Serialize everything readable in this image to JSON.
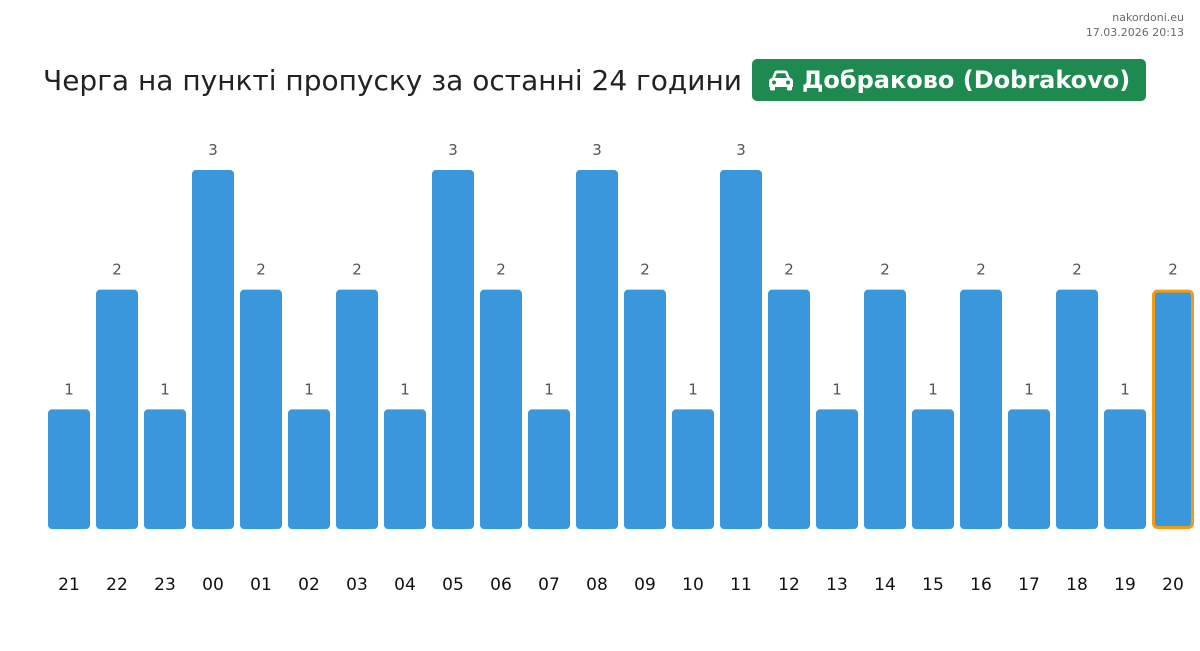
{
  "source": {
    "site": "nakordoni.eu",
    "timestamp": "17.03.2026 20:13"
  },
  "header": {
    "title": "Черга на пункті пропуску за останні 24 години",
    "badge_label": "Добраково (Dobrakovo)",
    "badge_icon": "car-icon",
    "badge_color": "#1e8a4f"
  },
  "colors": {
    "bar": "#3a97db",
    "highlight_border": "#f39c12",
    "value_label": "#555555",
    "tick_label": "#111111"
  },
  "chart_data": {
    "type": "bar",
    "title": "Черга на пункті пропуску за останні 24 години",
    "xlabel": "",
    "ylabel": "",
    "categories": [
      "21",
      "22",
      "23",
      "00",
      "01",
      "02",
      "03",
      "04",
      "05",
      "06",
      "07",
      "08",
      "09",
      "10",
      "11",
      "12",
      "13",
      "14",
      "15",
      "16",
      "17",
      "18",
      "19",
      "20"
    ],
    "values": [
      1,
      2,
      1,
      3,
      2,
      1,
      2,
      1,
      3,
      2,
      1,
      3,
      2,
      1,
      3,
      2,
      1,
      2,
      1,
      2,
      1,
      2,
      1,
      2
    ],
    "ylim": [
      0,
      3
    ],
    "grid": false,
    "data_labels": true,
    "highlighted_category": "20"
  }
}
